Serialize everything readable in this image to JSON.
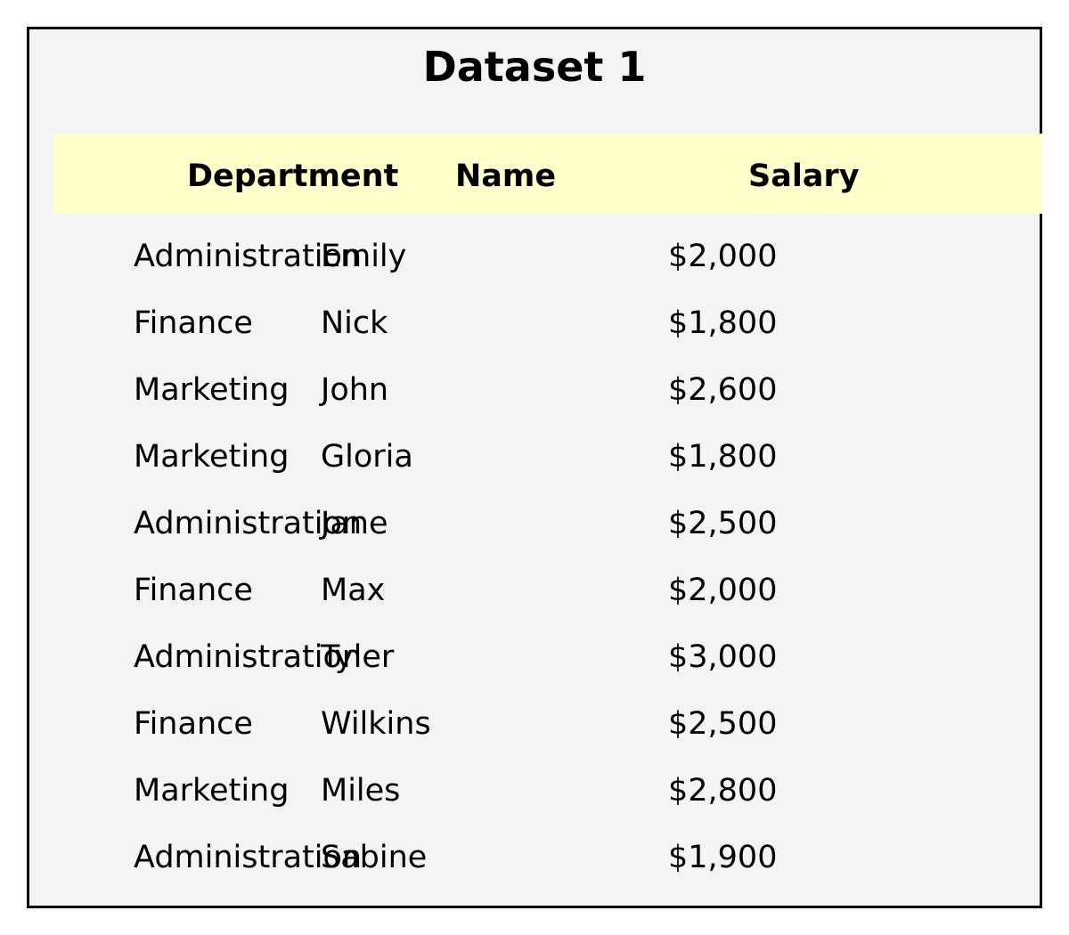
{
  "chart_data": {
    "type": "table",
    "title": "Dataset 1",
    "columns": [
      "Department",
      "Name",
      "Salary"
    ],
    "rows": [
      [
        "Administration",
        "Emily",
        "$2,000"
      ],
      [
        "Finance",
        "Nick",
        "$1,800"
      ],
      [
        "Marketing",
        "John",
        "$2,600"
      ],
      [
        "Marketing",
        "Gloria",
        "$1,800"
      ],
      [
        "Administration",
        "Jane",
        "$2,500"
      ],
      [
        "Finance",
        "Max",
        "$2,000"
      ],
      [
        "Administration",
        "Tyler",
        "$3,000"
      ],
      [
        "Finance",
        "Wilkins",
        "$2,500"
      ],
      [
        "Marketing",
        "Miles",
        "$2,800"
      ],
      [
        "Administration",
        "Sabine",
        "$1,900"
      ]
    ]
  },
  "colors": {
    "header_background": "#ffffcc",
    "panel_background": "#f4f4f4",
    "border": "#000000"
  }
}
